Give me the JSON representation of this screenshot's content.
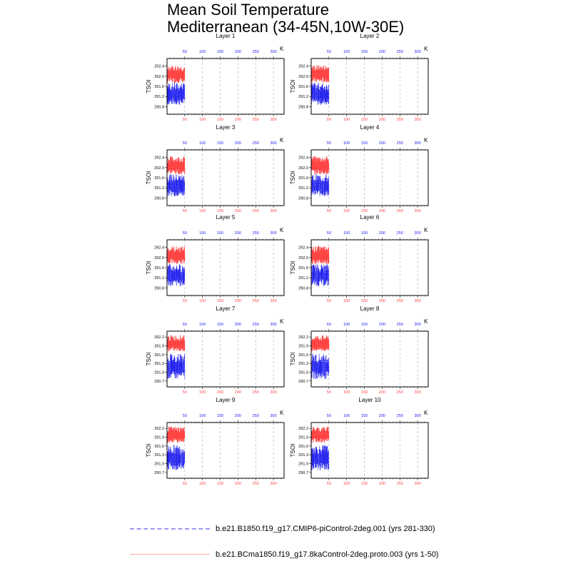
{
  "title_line1": "Mean Soil Temperature",
  "title_line2": "Mediterranean (34-45N,10W-30E)",
  "colors": {
    "ctrl": "#ff4444",
    "pi": "#2222ee",
    "grid": "#aaaaaa"
  },
  "legend": [
    {
      "label": "b.e21.B1850.f19_g17.CMIP6-piControl-2deg.001 (yrs 281-330)",
      "color": "#9999ee",
      "style": "dashed"
    },
    {
      "label": "b.e21.BCma1850.f19_g17.8kaControl-2deg.proto.003 (yrs 1-50)",
      "color": "#ffaaaa",
      "style": "solid"
    }
  ],
  "chart_data": {
    "type": "line",
    "ylabel": "TSOI",
    "top_axis_unit": "K",
    "x_ticks": [
      "50",
      "100",
      "150",
      "200",
      "250",
      "300"
    ],
    "x_tick_values": [
      50,
      100,
      150,
      200,
      250,
      300
    ],
    "xlim": [
      0,
      330
    ],
    "data_range_x": [
      1,
      50
    ],
    "panels": [
      {
        "label": "Layer 1",
        "yticks": [
          "292.4",
          "292.0",
          "291.6",
          "291.2",
          "290.8"
        ],
        "ytick_values": [
          292.4,
          292.0,
          291.6,
          291.2,
          290.8
        ],
        "ylim": [
          290.5,
          292.7
        ],
        "ctrl_range": [
          291.6,
          292.5
        ],
        "pi_range": [
          290.7,
          291.8
        ]
      },
      {
        "label": "Layer 2",
        "yticks": [
          "292.4",
          "292.0",
          "291.6",
          "291.2",
          "290.8"
        ],
        "ytick_values": [
          292.4,
          292.0,
          291.6,
          291.2,
          290.8
        ],
        "ylim": [
          290.5,
          292.7
        ],
        "ctrl_range": [
          291.6,
          292.5
        ],
        "pi_range": [
          290.7,
          291.8
        ]
      },
      {
        "label": "Layer 3",
        "yticks": [
          "292.4",
          "292.0",
          "291.6",
          "291.2",
          "290.8"
        ],
        "ytick_values": [
          292.4,
          292.0,
          291.6,
          291.2,
          290.8
        ],
        "ylim": [
          290.5,
          292.7
        ],
        "ctrl_range": [
          291.6,
          292.5
        ],
        "pi_range": [
          290.7,
          291.8
        ]
      },
      {
        "label": "Layer 4",
        "yticks": [
          "292.4",
          "292.0",
          "291.6",
          "291.2",
          "290.8"
        ],
        "ytick_values": [
          292.4,
          292.0,
          291.6,
          291.2,
          290.8
        ],
        "ylim": [
          290.5,
          292.7
        ],
        "ctrl_range": [
          291.6,
          292.5
        ],
        "pi_range": [
          290.7,
          291.8
        ]
      },
      {
        "label": "Layer 5",
        "yticks": [
          "292.4",
          "292.0",
          "291.6",
          "291.2",
          "290.8"
        ],
        "ytick_values": [
          292.4,
          292.0,
          291.6,
          291.2,
          290.8
        ],
        "ylim": [
          290.5,
          292.7
        ],
        "ctrl_range": [
          291.6,
          292.5
        ],
        "pi_range": [
          290.7,
          291.8
        ]
      },
      {
        "label": "Layer 6",
        "yticks": [
          "292.4",
          "292.0",
          "291.6",
          "291.2",
          "290.8"
        ],
        "ytick_values": [
          292.4,
          292.0,
          291.6,
          291.2,
          290.8
        ],
        "ylim": [
          290.5,
          292.7
        ],
        "ctrl_range": [
          291.6,
          292.5
        ],
        "pi_range": [
          290.7,
          291.8
        ]
      },
      {
        "label": "Layer 7",
        "yticks": [
          "292.2",
          "291.9",
          "291.6",
          "291.3",
          "291.0",
          "290.7"
        ],
        "ytick_values": [
          292.2,
          291.9,
          291.6,
          291.3,
          291.0,
          290.7
        ],
        "ylim": [
          290.5,
          292.4
        ],
        "ctrl_range": [
          291.6,
          292.3
        ],
        "pi_range": [
          290.6,
          291.7
        ]
      },
      {
        "label": "Layer 8",
        "yticks": [
          "292.2",
          "291.9",
          "291.6",
          "291.3",
          "291.0",
          "290.7"
        ],
        "ytick_values": [
          292.2,
          291.9,
          291.6,
          291.3,
          291.0,
          290.7
        ],
        "ylim": [
          290.5,
          292.4
        ],
        "ctrl_range": [
          291.6,
          292.3
        ],
        "pi_range": [
          290.6,
          291.7
        ]
      },
      {
        "label": "Layer 9",
        "yticks": [
          "292.2",
          "291.9",
          "291.6",
          "291.3",
          "291.0",
          "290.7"
        ],
        "ytick_values": [
          292.2,
          291.9,
          291.6,
          291.3,
          291.0,
          290.7
        ],
        "ylim": [
          290.5,
          292.4
        ],
        "ctrl_range": [
          291.6,
          292.3
        ],
        "pi_range": [
          290.6,
          291.7
        ]
      },
      {
        "label": "Layer 10",
        "yticks": [
          "292.2",
          "291.9",
          "291.6",
          "291.3",
          "291.0",
          "290.7"
        ],
        "ytick_values": [
          292.2,
          291.9,
          291.6,
          291.3,
          291.0,
          290.7
        ],
        "ylim": [
          290.5,
          292.4
        ],
        "ctrl_range": [
          291.6,
          292.3
        ],
        "pi_range": [
          290.6,
          291.7
        ]
      }
    ]
  }
}
